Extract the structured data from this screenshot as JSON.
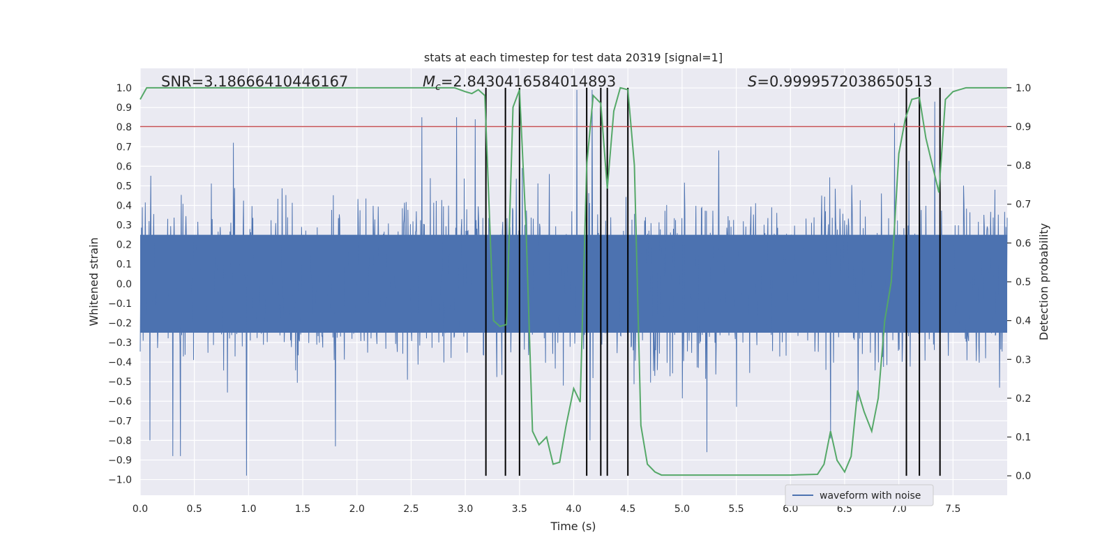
{
  "chart_data": {
    "type": "line",
    "title": "stats at each timestep for test data 20319 [signal=1]",
    "xlabel": "Time (s)",
    "ylabel": "Whitened strain",
    "y2label": "Detection probability",
    "xlim": [
      0.0,
      8.0
    ],
    "ylim": [
      -1.08,
      1.1
    ],
    "y2lim": [
      -0.05,
      1.05
    ],
    "x_ticks": [
      0.0,
      0.5,
      1.0,
      1.5,
      2.0,
      2.5,
      3.0,
      3.5,
      4.0,
      4.5,
      5.0,
      5.5,
      6.0,
      6.5,
      7.0,
      7.5
    ],
    "x_tick_labels": [
      "0.0",
      "0.5",
      "1.0",
      "1.5",
      "2.0",
      "2.5",
      "3.0",
      "3.5",
      "4.0",
      "4.5",
      "5.0",
      "5.5",
      "6.0",
      "6.5",
      "7.0",
      "7.5"
    ],
    "y_ticks": [
      -1.0,
      -0.9,
      -0.8,
      -0.7,
      -0.6,
      -0.5,
      -0.4,
      -0.3,
      -0.2,
      -0.1,
      0.0,
      0.1,
      0.2,
      0.3,
      0.4,
      0.5,
      0.6,
      0.7,
      0.8,
      0.9,
      1.0
    ],
    "y_tick_labels": [
      "−1.0",
      "−0.9",
      "−0.8",
      "−0.7",
      "−0.6",
      "−0.5",
      "−0.4",
      "−0.3",
      "−0.2",
      "−0.1",
      "0.0",
      "0.1",
      "0.2",
      "0.3",
      "0.4",
      "0.5",
      "0.6",
      "0.7",
      "0.8",
      "0.9",
      "1.0"
    ],
    "y2_ticks": [
      0.0,
      0.1,
      0.2,
      0.3,
      0.4,
      0.5,
      0.6,
      0.7,
      0.8,
      0.9,
      1.0
    ],
    "y2_tick_labels": [
      "0.0",
      "0.1",
      "0.2",
      "0.3",
      "0.4",
      "0.5",
      "0.6",
      "0.7",
      "0.8",
      "0.9",
      "1.0"
    ],
    "annotations": {
      "snr": "SNR=3.18666410446167",
      "mc_symbol": "M",
      "mc_sub": "c",
      "mc_value": "=2.8430416584014893",
      "s_symbol": "S",
      "s_value": "=0.9999572038650513"
    },
    "threshold": {
      "axis": "y2",
      "value": 0.9,
      "color": "#c44e52"
    },
    "vertical_lines": [
      3.19,
      3.37,
      3.5,
      4.12,
      4.25,
      4.31,
      4.5,
      7.07,
      7.19,
      7.38
    ],
    "vertical_lines_y2_range": [
      0.0,
      1.0
    ],
    "waveform": {
      "name": "waveform with noise",
      "color": "#4c72b0",
      "seed": 20319,
      "n_samples": 2048,
      "base_sigma": 0.2,
      "peak_samples": [
        [
          0.98,
          -0.98
        ],
        [
          0.3,
          -0.88
        ],
        [
          0.37,
          -0.88
        ],
        [
          0.09,
          -0.8
        ],
        [
          1.8,
          -0.83
        ],
        [
          0.86,
          0.72
        ],
        [
          2.6,
          0.85
        ],
        [
          2.92,
          0.85
        ],
        [
          3.09,
          0.84
        ],
        [
          4.03,
          0.99
        ],
        [
          4.17,
          0.99
        ],
        [
          6.96,
          0.82
        ],
        [
          7.33,
          0.93
        ],
        [
          5.23,
          -0.86
        ],
        [
          4.15,
          -0.8
        ],
        [
          6.37,
          -0.79
        ],
        [
          3.5,
          -0.76
        ]
      ]
    },
    "probability_series": {
      "name": "detection probability",
      "color": "#55a868",
      "x": [
        0.0,
        0.06,
        2.9,
        3.0,
        3.06,
        3.12,
        3.18,
        3.26,
        3.32,
        3.38,
        3.44,
        3.5,
        3.56,
        3.62,
        3.68,
        3.75,
        3.81,
        3.87,
        3.93,
        4.0,
        4.06,
        4.12,
        4.18,
        4.25,
        4.31,
        4.37,
        4.43,
        4.5,
        4.56,
        4.62,
        4.68,
        4.75,
        4.81,
        5.0,
        5.5,
        6.0,
        6.25,
        6.31,
        6.37,
        6.43,
        6.5,
        6.56,
        6.62,
        6.68,
        6.75,
        6.81,
        6.87,
        6.93,
        7.0,
        7.06,
        7.12,
        7.19,
        7.25,
        7.31,
        7.37,
        7.43,
        7.5,
        7.56,
        7.62,
        7.68,
        8.0
      ],
      "y": [
        0.97,
        1.0,
        1.0,
        0.99,
        0.985,
        0.995,
        0.98,
        0.4,
        0.385,
        0.39,
        0.95,
        0.995,
        0.64,
        0.115,
        0.08,
        0.1,
        0.03,
        0.035,
        0.13,
        0.225,
        0.19,
        0.8,
        0.98,
        0.96,
        0.74,
        0.94,
        1.0,
        0.995,
        0.8,
        0.13,
        0.03,
        0.01,
        0.002,
        0.002,
        0.002,
        0.002,
        0.004,
        0.03,
        0.115,
        0.04,
        0.01,
        0.05,
        0.22,
        0.165,
        0.115,
        0.2,
        0.4,
        0.5,
        0.83,
        0.92,
        0.97,
        0.975,
        0.87,
        0.8,
        0.73,
        0.97,
        0.99,
        0.995,
        1.0,
        1.0,
        1.0
      ]
    },
    "legend": {
      "label": "waveform with noise",
      "position": "lower-right"
    },
    "grid": true
  }
}
